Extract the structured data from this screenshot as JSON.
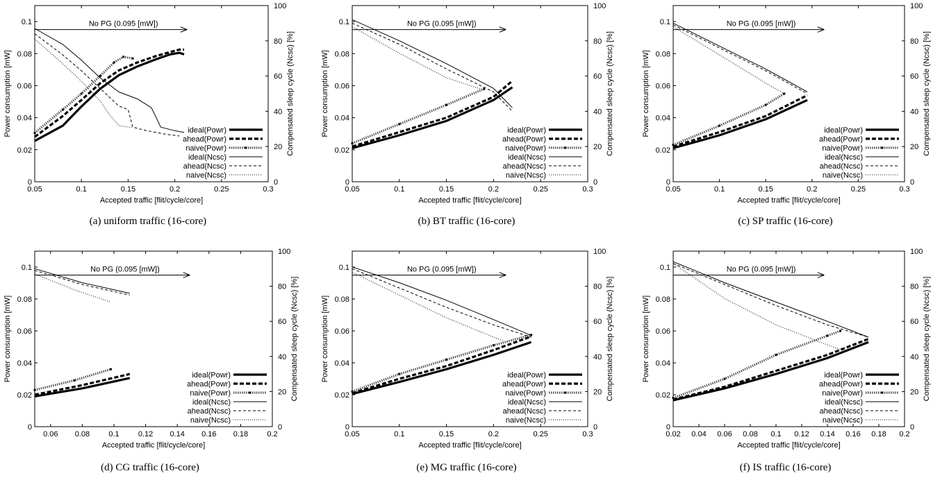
{
  "panel_labels": [
    "(a)  uniform traffic (16-core)",
    "(b)  BT traffic (16-core)",
    "(c)  SP traffic (16-core)",
    "(d)  CG traffic (16-core)",
    "(e)  MG traffic (16-core)",
    "(f)  IS traffic (16-core)"
  ],
  "legend_labels": [
    "ideal(Powr)",
    "ahead(Powr)",
    "naive(Powr)",
    "ideal(Ncsc)",
    "ahead(Ncsc)",
    "naive(Ncsc)"
  ],
  "chart_data": [
    {
      "type": "line",
      "caption": "(a)  uniform traffic (16-core)",
      "xlabel": "Accepted traffic [flit/cycle/core]",
      "ylabel": "Power consumption [mW]",
      "y2label": "Compensated sleep cycle (Ncsc) [%]",
      "xlim": [
        0.05,
        0.3
      ],
      "xticks": [
        0.05,
        0.1,
        0.15,
        0.2,
        0.25,
        0.3
      ],
      "ylim": [
        0,
        0.11
      ],
      "yticks": [
        0,
        0.02,
        0.04,
        0.06,
        0.08,
        0.1
      ],
      "y2lim": [
        0,
        100
      ],
      "y2ticks": [
        0,
        20,
        40,
        60,
        80,
        100
      ],
      "annotation": {
        "text": "No PG (0.095 [mW])",
        "y": 0.095
      },
      "series": [
        {
          "name": "ideal(Powr)",
          "axis": "left",
          "x": [
            0.05,
            0.08,
            0.1,
            0.12,
            0.14,
            0.16,
            0.18,
            0.195,
            0.205,
            0.21
          ],
          "y": [
            0.0255,
            0.035,
            0.047,
            0.058,
            0.0665,
            0.072,
            0.0765,
            0.0795,
            0.0805,
            0.0795
          ]
        },
        {
          "name": "ahead(Powr)",
          "axis": "left",
          "x": [
            0.05,
            0.08,
            0.1,
            0.12,
            0.14,
            0.16,
            0.18,
            0.195,
            0.205,
            0.21
          ],
          "y": [
            0.028,
            0.041,
            0.051,
            0.0615,
            0.0695,
            0.0745,
            0.0785,
            0.081,
            0.0825,
            0.0825
          ]
        },
        {
          "name": "naive(Powr)",
          "axis": "left",
          "x": [
            0.05,
            0.08,
            0.1,
            0.12,
            0.135,
            0.145,
            0.155
          ],
          "y": [
            0.0305,
            0.045,
            0.055,
            0.066,
            0.0745,
            0.078,
            0.077
          ]
        },
        {
          "name": "ideal(Ncsc)",
          "axis": "right",
          "x": [
            0.05,
            0.08,
            0.1,
            0.12,
            0.14,
            0.16,
            0.175,
            0.185,
            0.2,
            0.21
          ],
          "y": [
            87,
            78,
            69,
            59,
            51,
            47,
            42,
            31,
            29,
            28
          ]
        },
        {
          "name": "ahead(Ncsc)",
          "axis": "right",
          "x": [
            0.05,
            0.08,
            0.1,
            0.12,
            0.14,
            0.15,
            0.155,
            0.17,
            0.19,
            0.205
          ],
          "y": [
            84,
            72,
            63,
            53,
            43,
            41,
            31,
            29,
            27,
            26
          ]
        },
        {
          "name": "naive(Ncsc)",
          "axis": "right",
          "x": [
            0.05,
            0.08,
            0.1,
            0.12,
            0.13,
            0.14,
            0.15,
            0.155
          ],
          "y": [
            81,
            67,
            57,
            46,
            38,
            32,
            31,
            31
          ]
        }
      ]
    },
    {
      "type": "line",
      "caption": "(b)  BT traffic (16-core)",
      "xlabel": "Accepted traffic [flit/cycle/core]",
      "ylabel": "Power consumption [mW]",
      "y2label": "Compensated sleep cycle (Ncsc) [%]",
      "xlim": [
        0.05,
        0.3
      ],
      "xticks": [
        0.05,
        0.1,
        0.15,
        0.2,
        0.25,
        0.3
      ],
      "ylim": [
        0,
        0.11
      ],
      "yticks": [
        0,
        0.02,
        0.04,
        0.06,
        0.08,
        0.1
      ],
      "y2lim": [
        0,
        100
      ],
      "y2ticks": [
        0,
        20,
        40,
        60,
        80,
        100
      ],
      "annotation": {
        "text": "No PG (0.095 [mW])",
        "y": 0.095
      },
      "series": [
        {
          "name": "ideal(Powr)",
          "axis": "left",
          "x": [
            0.05,
            0.1,
            0.15,
            0.2,
            0.22
          ],
          "y": [
            0.021,
            0.029,
            0.038,
            0.051,
            0.059
          ]
        },
        {
          "name": "ahead(Powr)",
          "axis": "left",
          "x": [
            0.05,
            0.1,
            0.15,
            0.2,
            0.22
          ],
          "y": [
            0.022,
            0.031,
            0.04,
            0.053,
            0.063
          ]
        },
        {
          "name": "naive(Powr)",
          "axis": "left",
          "x": [
            0.05,
            0.1,
            0.15,
            0.19
          ],
          "y": [
            0.024,
            0.036,
            0.048,
            0.058
          ]
        },
        {
          "name": "ideal(Ncsc)",
          "axis": "right",
          "x": [
            0.05,
            0.1,
            0.15,
            0.2,
            0.22
          ],
          "y": [
            92,
            80,
            67,
            53,
            42
          ]
        },
        {
          "name": "ahead(Ncsc)",
          "axis": "right",
          "x": [
            0.05,
            0.1,
            0.15,
            0.2,
            0.22
          ],
          "y": [
            90,
            78,
            64,
            51,
            40
          ]
        },
        {
          "name": "naive(Ncsc)",
          "axis": "right",
          "x": [
            0.05,
            0.1,
            0.15,
            0.19
          ],
          "y": [
            88,
            73,
            59,
            52
          ]
        }
      ]
    },
    {
      "type": "line",
      "caption": "(c)  SP traffic (16-core)",
      "xlabel": "Accepted traffic [flit/cycle/core]",
      "ylabel": "Power consumption [mW]",
      "y2label": "Compensated sleep cycle (Ncsc) [%]",
      "xlim": [
        0.05,
        0.3
      ],
      "xticks": [
        0.05,
        0.1,
        0.15,
        0.2,
        0.25,
        0.3
      ],
      "ylim": [
        0,
        0.11
      ],
      "yticks": [
        0,
        0.02,
        0.04,
        0.06,
        0.08,
        0.1
      ],
      "y2lim": [
        0,
        100
      ],
      "y2ticks": [
        0,
        20,
        40,
        60,
        80,
        100
      ],
      "annotation": {
        "text": "No PG (0.095 [mW])",
        "y": 0.095
      },
      "series": [
        {
          "name": "ideal(Powr)",
          "axis": "left",
          "x": [
            0.05,
            0.1,
            0.15,
            0.195
          ],
          "y": [
            0.021,
            0.029,
            0.039,
            0.051
          ]
        },
        {
          "name": "ahead(Powr)",
          "axis": "left",
          "x": [
            0.05,
            0.1,
            0.15,
            0.195
          ],
          "y": [
            0.022,
            0.031,
            0.041,
            0.054
          ]
        },
        {
          "name": "naive(Powr)",
          "axis": "left",
          "x": [
            0.05,
            0.1,
            0.15,
            0.17
          ],
          "y": [
            0.023,
            0.035,
            0.048,
            0.055
          ]
        },
        {
          "name": "ideal(Ncsc)",
          "axis": "right",
          "x": [
            0.05,
            0.1,
            0.15,
            0.195
          ],
          "y": [
            90,
            77,
            64,
            51
          ]
        },
        {
          "name": "ahead(Ncsc)",
          "axis": "right",
          "x": [
            0.05,
            0.1,
            0.15,
            0.195
          ],
          "y": [
            89,
            76,
            63,
            50
          ]
        },
        {
          "name": "naive(Ncsc)",
          "axis": "right",
          "x": [
            0.05,
            0.1,
            0.15,
            0.17
          ],
          "y": [
            88,
            72,
            56,
            50
          ]
        }
      ]
    },
    {
      "type": "line",
      "caption": "(d)  CG traffic (16-core)",
      "xlabel": "Accepted traffic [flit/cycle/core]",
      "ylabel": "Power consumption [mW]",
      "y2label": "Compensated sleep cycle (Ncsc) [%]",
      "xlim": [
        0.05,
        0.2
      ],
      "xticks": [
        0.06,
        0.08,
        0.1,
        0.12,
        0.14,
        0.16,
        0.18,
        0.2
      ],
      "ylim": [
        0,
        0.11
      ],
      "yticks": [
        0,
        0.02,
        0.04,
        0.06,
        0.08,
        0.1
      ],
      "y2lim": [
        0,
        100
      ],
      "y2ticks": [
        0,
        20,
        40,
        60,
        80,
        100
      ],
      "annotation": {
        "text": "No PG (0.095 [mW])",
        "y": 0.095
      },
      "series": [
        {
          "name": "ideal(Powr)",
          "axis": "left",
          "x": [
            0.05,
            0.08,
            0.11
          ],
          "y": [
            0.019,
            0.024,
            0.0305
          ]
        },
        {
          "name": "ahead(Powr)",
          "axis": "left",
          "x": [
            0.05,
            0.08,
            0.11
          ],
          "y": [
            0.02,
            0.026,
            0.033
          ]
        },
        {
          "name": "naive(Powr)",
          "axis": "left",
          "x": [
            0.05,
            0.075,
            0.098
          ],
          "y": [
            0.023,
            0.029,
            0.036
          ]
        },
        {
          "name": "ideal(Ncsc)",
          "axis": "right",
          "x": [
            0.05,
            0.08,
            0.11
          ],
          "y": [
            90,
            82,
            76
          ]
        },
        {
          "name": "ahead(Ncsc)",
          "axis": "right",
          "x": [
            0.05,
            0.08,
            0.11
          ],
          "y": [
            89,
            81,
            75
          ]
        },
        {
          "name": "naive(Ncsc)",
          "axis": "right",
          "x": [
            0.05,
            0.075,
            0.098
          ],
          "y": [
            87,
            78,
            71
          ]
        }
      ]
    },
    {
      "type": "line",
      "caption": "(e)  MG traffic (16-core)",
      "xlabel": "Accepted traffic [flit/cycle/core]",
      "ylabel": "Power consumption [mW]",
      "y2label": "Compensated sleep cycle (Ncsc) [%]",
      "xlim": [
        0.05,
        0.3
      ],
      "xticks": [
        0.05,
        0.1,
        0.15,
        0.2,
        0.25,
        0.3
      ],
      "ylim": [
        0,
        0.11
      ],
      "yticks": [
        0,
        0.02,
        0.04,
        0.06,
        0.08,
        0.1
      ],
      "y2lim": [
        0,
        100
      ],
      "y2ticks": [
        0,
        20,
        40,
        60,
        80,
        100
      ],
      "annotation": {
        "text": "No PG (0.095 [mW])",
        "y": 0.095
      },
      "series": [
        {
          "name": "ideal(Powr)",
          "axis": "left",
          "x": [
            0.05,
            0.1,
            0.15,
            0.2,
            0.24
          ],
          "y": [
            0.0205,
            0.028,
            0.036,
            0.045,
            0.053
          ]
        },
        {
          "name": "ahead(Powr)",
          "axis": "left",
          "x": [
            0.05,
            0.1,
            0.15,
            0.2,
            0.24
          ],
          "y": [
            0.021,
            0.03,
            0.038,
            0.048,
            0.0565
          ]
        },
        {
          "name": "naive(Powr)",
          "axis": "left",
          "x": [
            0.05,
            0.1,
            0.15,
            0.2,
            0.24
          ],
          "y": [
            0.022,
            0.033,
            0.042,
            0.051,
            0.0575
          ]
        },
        {
          "name": "ideal(Ncsc)",
          "axis": "right",
          "x": [
            0.05,
            0.1,
            0.15,
            0.2,
            0.24
          ],
          "y": [
            91,
            82,
            72,
            61,
            52
          ]
        },
        {
          "name": "ahead(Ncsc)",
          "axis": "right",
          "x": [
            0.05,
            0.1,
            0.15,
            0.2,
            0.24
          ],
          "y": [
            90,
            79,
            68,
            58,
            51
          ]
        },
        {
          "name": "naive(Ncsc)",
          "axis": "right",
          "x": [
            0.05,
            0.1,
            0.15,
            0.2,
            0.21
          ],
          "y": [
            88,
            75,
            62,
            51,
            49
          ]
        }
      ]
    },
    {
      "type": "line",
      "caption": "(f)  IS traffic (16-core)",
      "xlabel": "Accepted traffic [flit/cycle/core]",
      "ylabel": "Power consumption [mW]",
      "y2label": "Compensated sleep cycle (Ncsc) [%]",
      "xlim": [
        0.02,
        0.2
      ],
      "xticks": [
        0.02,
        0.04,
        0.06,
        0.08,
        0.1,
        0.12,
        0.14,
        0.16,
        0.18,
        0.2
      ],
      "ylim": [
        0,
        0.11
      ],
      "yticks": [
        0,
        0.02,
        0.04,
        0.06,
        0.08,
        0.1
      ],
      "y2lim": [
        0,
        100
      ],
      "y2ticks": [
        0,
        20,
        40,
        60,
        80,
        100
      ],
      "annotation": {
        "text": "No PG (0.095 [mW])",
        "y": 0.095
      },
      "series": [
        {
          "name": "ideal(Powr)",
          "axis": "left",
          "x": [
            0.02,
            0.06,
            0.1,
            0.14,
            0.172
          ],
          "y": [
            0.0165,
            0.024,
            0.033,
            0.043,
            0.053
          ]
        },
        {
          "name": "ahead(Powr)",
          "axis": "left",
          "x": [
            0.02,
            0.06,
            0.1,
            0.14,
            0.172
          ],
          "y": [
            0.017,
            0.025,
            0.035,
            0.045,
            0.055
          ]
        },
        {
          "name": "naive(Powr)",
          "axis": "left",
          "x": [
            0.02,
            0.06,
            0.1,
            0.14,
            0.15
          ],
          "y": [
            0.018,
            0.03,
            0.045,
            0.057,
            0.06
          ]
        },
        {
          "name": "ideal(Ncsc)",
          "axis": "right",
          "x": [
            0.02,
            0.06,
            0.1,
            0.14,
            0.172
          ],
          "y": [
            94,
            82,
            71,
            60,
            51
          ]
        },
        {
          "name": "ahead(Ncsc)",
          "axis": "right",
          "x": [
            0.02,
            0.06,
            0.1,
            0.14,
            0.172
          ],
          "y": [
            93,
            81,
            69,
            58,
            51
          ]
        },
        {
          "name": "naive(Ncsc)",
          "axis": "right",
          "x": [
            0.02,
            0.06,
            0.1,
            0.135,
            0.15
          ],
          "y": [
            93,
            73,
            58,
            48,
            44
          ]
        }
      ]
    }
  ]
}
